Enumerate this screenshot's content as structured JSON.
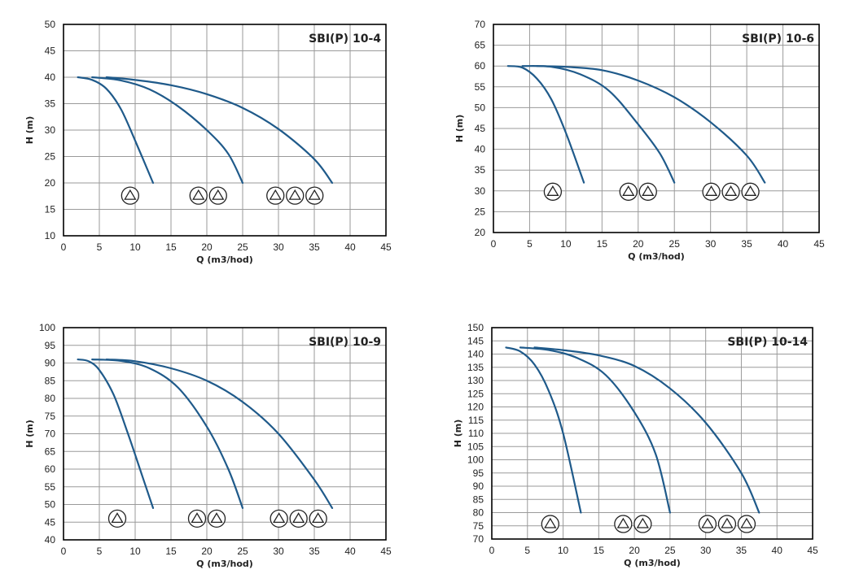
{
  "chart_data": [
    {
      "type": "line",
      "title": "SBI(P) 10-4",
      "xlabel": "Q (m3/hod)",
      "ylabel": "H (m)",
      "xlim": [
        0,
        45
      ],
      "ylim": [
        10,
        50
      ],
      "xticks": [
        0,
        5,
        10,
        15,
        20,
        25,
        30,
        35,
        40,
        45
      ],
      "yticks": [
        10,
        15,
        20,
        25,
        30,
        35,
        40,
        45,
        50
      ],
      "grid": true,
      "line_color": "#1f5a8a",
      "series": [
        {
          "x": [
            2,
            4,
            6,
            8,
            10,
            12.5
          ],
          "y": [
            40,
            39.5,
            37.8,
            34,
            28,
            20
          ]
        },
        {
          "x": [
            4,
            8,
            12,
            16,
            20,
            23,
            25
          ],
          "y": [
            40,
            39.4,
            37.7,
            34.5,
            30,
            25.5,
            20
          ]
        },
        {
          "x": [
            6,
            10,
            15,
            20,
            25,
            30,
            35,
            37.5
          ],
          "y": [
            40,
            39.5,
            38.5,
            36.8,
            34.2,
            30.2,
            24.5,
            20
          ]
        }
      ],
      "pump_groups": [
        {
          "label_x": 9.3,
          "label_y": 17.6,
          "count": 1
        },
        {
          "label_x": 20.2,
          "label_y": 17.6,
          "count": 2
        },
        {
          "label_x": 32.3,
          "label_y": 17.6,
          "count": 3
        }
      ]
    },
    {
      "type": "line",
      "title": "SBI(P) 10-6",
      "xlabel": "Q (m3/hod)",
      "ylabel": "H (m)",
      "xlim": [
        0,
        45
      ],
      "ylim": [
        20,
        70
      ],
      "xticks": [
        0,
        5,
        10,
        15,
        20,
        25,
        30,
        35,
        40,
        45
      ],
      "yticks": [
        20,
        25,
        30,
        35,
        40,
        45,
        50,
        55,
        60,
        65,
        70
      ],
      "grid": true,
      "line_color": "#1f5a8a",
      "series": [
        {
          "x": [
            2,
            4,
            6,
            8,
            10,
            12.5
          ],
          "y": [
            60,
            59.6,
            57,
            52,
            44,
            32
          ]
        },
        {
          "x": [
            4,
            8,
            12,
            16,
            20,
            23,
            25
          ],
          "y": [
            60,
            59.8,
            58,
            54,
            46,
            39,
            32
          ]
        },
        {
          "x": [
            6,
            10,
            15,
            20,
            25,
            30,
            35,
            37.5
          ],
          "y": [
            60,
            59.8,
            59,
            56.5,
            52.5,
            46.5,
            38.5,
            32
          ]
        }
      ],
      "pump_groups": [
        {
          "label_x": 8.2,
          "label_y": 29.8,
          "count": 1
        },
        {
          "label_x": 20,
          "label_y": 29.8,
          "count": 2
        },
        {
          "label_x": 32.8,
          "label_y": 29.8,
          "count": 3
        }
      ]
    },
    {
      "type": "line",
      "title": "SBI(P) 10-9",
      "xlabel": "Q (m3/hod)",
      "ylabel": "H (m)",
      "xlim": [
        0,
        45
      ],
      "ylim": [
        40,
        100
      ],
      "xticks": [
        0,
        5,
        10,
        15,
        20,
        25,
        30,
        35,
        40,
        45
      ],
      "yticks": [
        40,
        45,
        50,
        55,
        60,
        65,
        70,
        75,
        80,
        85,
        90,
        95,
        100
      ],
      "grid": true,
      "line_color": "#1f5a8a",
      "series": [
        {
          "x": [
            2,
            3.5,
            5,
            7,
            9,
            11,
            12.5
          ],
          "y": [
            91,
            90.5,
            88,
            81,
            70,
            58,
            49
          ]
        },
        {
          "x": [
            4,
            8,
            12,
            16,
            20,
            23,
            25
          ],
          "y": [
            91,
            90.6,
            88.5,
            83,
            72,
            60,
            49
          ]
        },
        {
          "x": [
            6,
            10,
            15,
            20,
            25,
            30,
            35,
            37.5
          ],
          "y": [
            91,
            90.5,
            88.5,
            85,
            79,
            70,
            57,
            49
          ]
        }
      ],
      "pump_groups": [
        {
          "label_x": 7.5,
          "label_y": 46,
          "count": 1
        },
        {
          "label_x": 20,
          "label_y": 46,
          "count": 2
        },
        {
          "label_x": 32.8,
          "label_y": 46,
          "count": 3
        }
      ]
    },
    {
      "type": "line",
      "title": "SBI(P) 10-14",
      "xlabel": "Q (m3/hod)",
      "ylabel": "H (m)",
      "xlim": [
        0,
        45
      ],
      "ylim": [
        70,
        150
      ],
      "xticks": [
        0,
        5,
        10,
        15,
        20,
        25,
        30,
        35,
        40,
        45
      ],
      "yticks": [
        70,
        75,
        80,
        85,
        90,
        95,
        100,
        105,
        110,
        115,
        120,
        125,
        130,
        135,
        140,
        145,
        150
      ],
      "grid": true,
      "line_color": "#1f5a8a",
      "series": [
        {
          "x": [
            2,
            4,
            6,
            8,
            10,
            12.5
          ],
          "y": [
            142.5,
            141,
            136,
            126,
            110,
            80
          ]
        },
        {
          "x": [
            4,
            8,
            12,
            16,
            20,
            23,
            25
          ],
          "y": [
            142.5,
            141.5,
            138.5,
            132,
            118,
            102,
            80
          ]
        },
        {
          "x": [
            6,
            10,
            15,
            20,
            25,
            30,
            35,
            37.5
          ],
          "y": [
            142.5,
            141.5,
            139.5,
            135.5,
            127,
            114,
            95,
            80
          ]
        }
      ],
      "pump_groups": [
        {
          "label_x": 8.2,
          "label_y": 75.7,
          "count": 1
        },
        {
          "label_x": 19.8,
          "label_y": 75.7,
          "count": 2
        },
        {
          "label_x": 33,
          "label_y": 75.7,
          "count": 3
        }
      ]
    }
  ]
}
